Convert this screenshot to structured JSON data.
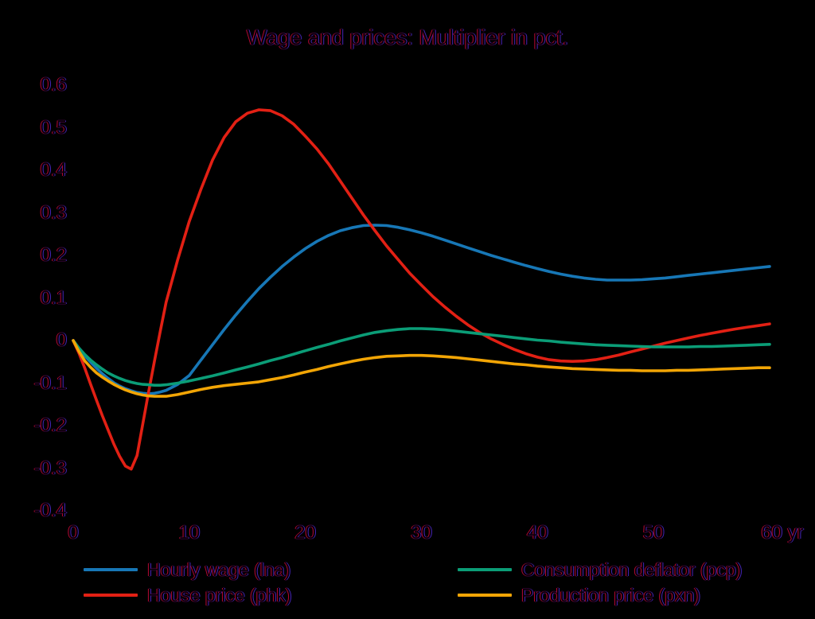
{
  "title": "Wage and prices: Multiplier in pct.",
  "colors": {
    "background": "#000000",
    "hourly_wage": "#1777b6",
    "house_price": "#e22014",
    "consumption_deflator": "#0b9d77",
    "production_price": "#f2a505"
  },
  "chart_data": {
    "type": "line",
    "title": "Wage and prices: Multiplier in pct.",
    "xlabel": "yr",
    "ylabel": "",
    "xlim": [
      0,
      60
    ],
    "ylim": [
      -0.4,
      0.6
    ],
    "x_ticks": [
      0,
      10,
      20,
      30,
      40,
      50,
      60
    ],
    "x_tick_labels": [
      "0",
      "10",
      "20",
      "30",
      "40",
      "50",
      "60 yr"
    ],
    "y_ticks": [
      0.6,
      0.5,
      0.4,
      0.3,
      0.2,
      0.1,
      0,
      -0.1,
      -0.2,
      -0.3,
      -0.4
    ],
    "y_tick_labels": [
      "0.6",
      "0.5",
      "0.4",
      "0.3",
      "0.2",
      "0.1",
      "0",
      "-0.1",
      "-0.2",
      "-0.3",
      "-0.4"
    ],
    "grid": false,
    "legend_position": "bottom",
    "x": [
      0,
      0.5,
      1,
      1.5,
      2,
      2.5,
      3,
      3.5,
      4,
      4.5,
      5,
      5.5,
      6,
      6.5,
      7,
      7.5,
      8,
      9,
      10,
      11,
      12,
      13,
      14,
      15,
      16,
      17,
      18,
      19,
      20,
      21,
      22,
      23,
      24,
      25,
      26,
      27,
      28,
      29,
      30,
      31,
      32,
      33,
      34,
      35,
      36,
      37,
      38,
      39,
      40,
      41,
      42,
      43,
      44,
      45,
      46,
      47,
      48,
      49,
      50,
      51,
      52,
      53,
      54,
      55,
      56,
      57,
      58,
      59,
      60
    ],
    "series": [
      {
        "name": "Hourly wage (lna)",
        "color": "#1777b6",
        "values": [
          0,
          -0.02,
          -0.036,
          -0.051,
          -0.065,
          -0.078,
          -0.089,
          -0.099,
          -0.107,
          -0.113,
          -0.118,
          -0.122,
          -0.124,
          -0.125,
          -0.124,
          -0.121,
          -0.117,
          -0.103,
          -0.082,
          -0.046,
          -0.01,
          0.026,
          0.06,
          0.092,
          0.122,
          0.149,
          0.174,
          0.196,
          0.216,
          0.233,
          0.247,
          0.258,
          0.265,
          0.27,
          0.271,
          0.27,
          0.266,
          0.26,
          0.253,
          0.245,
          0.236,
          0.227,
          0.218,
          0.209,
          0.2,
          0.192,
          0.184,
          0.176,
          0.169,
          0.162,
          0.156,
          0.151,
          0.147,
          0.144,
          0.142,
          0.142,
          0.142,
          0.143,
          0.145,
          0.147,
          0.15,
          0.153,
          0.156,
          0.159,
          0.162,
          0.165,
          0.168,
          0.171,
          0.174
        ]
      },
      {
        "name": "House price (phk)",
        "color": "#e22014",
        "values": [
          0,
          -0.03,
          -0.065,
          -0.103,
          -0.14,
          -0.176,
          -0.21,
          -0.243,
          -0.272,
          -0.295,
          -0.302,
          -0.27,
          -0.195,
          -0.12,
          -0.048,
          0.022,
          0.09,
          0.19,
          0.28,
          0.355,
          0.424,
          0.477,
          0.514,
          0.534,
          0.542,
          0.54,
          0.528,
          0.508,
          0.48,
          0.45,
          0.415,
          0.375,
          0.335,
          0.295,
          0.258,
          0.222,
          0.19,
          0.158,
          0.13,
          0.103,
          0.079,
          0.057,
          0.037,
          0.019,
          0.004,
          -0.009,
          -0.021,
          -0.031,
          -0.039,
          -0.045,
          -0.048,
          -0.049,
          -0.048,
          -0.045,
          -0.04,
          -0.034,
          -0.027,
          -0.02,
          -0.013,
          -0.006,
          0.0,
          0.006,
          0.012,
          0.017,
          0.022,
          0.027,
          0.031,
          0.035,
          0.039
        ]
      },
      {
        "name": "Consumption deflator (pcp)",
        "color": "#0b9d77",
        "values": [
          0,
          -0.018,
          -0.033,
          -0.046,
          -0.057,
          -0.067,
          -0.076,
          -0.083,
          -0.089,
          -0.094,
          -0.098,
          -0.101,
          -0.103,
          -0.104,
          -0.105,
          -0.105,
          -0.104,
          -0.1,
          -0.095,
          -0.089,
          -0.083,
          -0.076,
          -0.069,
          -0.062,
          -0.055,
          -0.047,
          -0.04,
          -0.032,
          -0.024,
          -0.016,
          -0.009,
          -0.001,
          0.006,
          0.013,
          0.019,
          0.023,
          0.026,
          0.028,
          0.028,
          0.027,
          0.025,
          0.022,
          0.019,
          0.016,
          0.013,
          0.01,
          0.007,
          0.004,
          0.001,
          -0.001,
          -0.004,
          -0.006,
          -0.008,
          -0.01,
          -0.011,
          -0.012,
          -0.013,
          -0.014,
          -0.015,
          -0.015,
          -0.015,
          -0.015,
          -0.014,
          -0.014,
          -0.013,
          -0.012,
          -0.011,
          -0.01,
          -0.009
        ]
      },
      {
        "name": "Production price (pxn)",
        "color": "#f2a505",
        "values": [
          0,
          -0.026,
          -0.048,
          -0.063,
          -0.076,
          -0.086,
          -0.095,
          -0.103,
          -0.11,
          -0.116,
          -0.121,
          -0.125,
          -0.128,
          -0.13,
          -0.131,
          -0.131,
          -0.131,
          -0.127,
          -0.121,
          -0.115,
          -0.11,
          -0.106,
          -0.103,
          -0.1,
          -0.097,
          -0.092,
          -0.087,
          -0.081,
          -0.074,
          -0.068,
          -0.061,
          -0.055,
          -0.049,
          -0.044,
          -0.04,
          -0.037,
          -0.036,
          -0.035,
          -0.035,
          -0.036,
          -0.038,
          -0.04,
          -0.043,
          -0.046,
          -0.049,
          -0.052,
          -0.055,
          -0.057,
          -0.06,
          -0.062,
          -0.064,
          -0.066,
          -0.067,
          -0.068,
          -0.069,
          -0.07,
          -0.07,
          -0.071,
          -0.071,
          -0.071,
          -0.07,
          -0.07,
          -0.069,
          -0.068,
          -0.067,
          -0.066,
          -0.065,
          -0.064,
          -0.064
        ]
      }
    ]
  }
}
